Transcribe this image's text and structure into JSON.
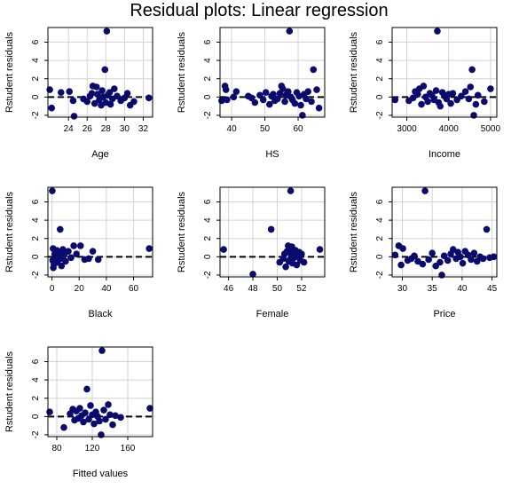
{
  "figure": {
    "title": "Residual plots: Linear regression"
  },
  "style": {
    "point_color": "#0b0b6e",
    "grid_color": "#d3d3d3",
    "reference_line_color": "#000000",
    "reference_line_dash": "dashed",
    "reference_line_y": 0
  },
  "chart_data": [
    {
      "type": "scatter",
      "xlabel": "Age",
      "ylabel": "Rstudent residuals",
      "xlim": [
        21.8,
        33
      ],
      "ylim": [
        -2.2,
        7.6
      ],
      "xticks": [
        24,
        26,
        28,
        30,
        32
      ],
      "yticks": [
        -2,
        0,
        2,
        4,
        6
      ],
      "grid": true,
      "points": [
        [
          22.0,
          0.8
        ],
        [
          22.2,
          -1.2
        ],
        [
          23.2,
          0.5
        ],
        [
          24.1,
          0.6
        ],
        [
          24.6,
          -2.1
        ],
        [
          24.5,
          -0.4
        ],
        [
          25.6,
          -0.2
        ],
        [
          26.0,
          -0.5
        ],
        [
          26.3,
          0.1
        ],
        [
          26.5,
          0.4
        ],
        [
          26.6,
          1.2
        ],
        [
          26.8,
          -0.7
        ],
        [
          27.0,
          1.1
        ],
        [
          27.1,
          0.3
        ],
        [
          27.3,
          -0.3
        ],
        [
          27.5,
          -0.9
        ],
        [
          27.6,
          0.7
        ],
        [
          27.7,
          0.0
        ],
        [
          27.9,
          3.0
        ],
        [
          28.1,
          7.2
        ],
        [
          28.0,
          -0.6
        ],
        [
          28.2,
          0.2
        ],
        [
          28.4,
          0.5
        ],
        [
          28.5,
          -0.8
        ],
        [
          28.7,
          -0.2
        ],
        [
          28.9,
          0.9
        ],
        [
          29.2,
          0.1
        ],
        [
          29.6,
          -0.4
        ],
        [
          30.0,
          -0.1
        ],
        [
          30.3,
          0.4
        ],
        [
          30.6,
          -0.9
        ],
        [
          31.0,
          -0.5
        ],
        [
          32.6,
          -0.1
        ]
      ]
    },
    {
      "type": "scatter",
      "xlabel": "HS",
      "ylabel": "Rstudent residuals",
      "xlim": [
        36.5,
        68
      ],
      "ylim": [
        -2.2,
        7.6
      ],
      "xticks": [
        40,
        50,
        60
      ],
      "yticks": [
        -2,
        0,
        2,
        4,
        6
      ],
      "grid": true,
      "points": [
        [
          37.0,
          -0.4
        ],
        [
          38.0,
          1.2
        ],
        [
          38.3,
          0.8
        ],
        [
          38.6,
          -0.3
        ],
        [
          40.6,
          0.0
        ],
        [
          41.4,
          0.6
        ],
        [
          45.0,
          0.1
        ],
        [
          46.0,
          -0.1
        ],
        [
          47.0,
          -0.6
        ],
        [
          48.5,
          0.2
        ],
        [
          49.5,
          -0.3
        ],
        [
          50.3,
          0.5
        ],
        [
          51.4,
          -0.8
        ],
        [
          52.0,
          0.1
        ],
        [
          52.5,
          0.3
        ],
        [
          53.0,
          -0.4
        ],
        [
          53.8,
          -0.2
        ],
        [
          54.5,
          0.4
        ],
        [
          55.0,
          1.2
        ],
        [
          55.4,
          0.9
        ],
        [
          56.0,
          -0.5
        ],
        [
          56.3,
          0.2
        ],
        [
          57.0,
          0.6
        ],
        [
          57.4,
          7.2
        ],
        [
          57.8,
          0.0
        ],
        [
          58.3,
          -0.3
        ],
        [
          59.0,
          -0.7
        ],
        [
          59.6,
          0.5
        ],
        [
          60.3,
          0.1
        ],
        [
          60.8,
          -0.9
        ],
        [
          61.3,
          -2.0
        ],
        [
          61.8,
          0.3
        ],
        [
          62.4,
          -0.2
        ],
        [
          63.0,
          0.6
        ],
        [
          64.0,
          -0.5
        ],
        [
          64.6,
          3.0
        ],
        [
          65.6,
          0.8
        ],
        [
          66.3,
          -1.2
        ]
      ]
    },
    {
      "type": "scatter",
      "xlabel": "Income",
      "ylabel": "Rstudent residuals",
      "xlim": [
        2650,
        5150
      ],
      "ylim": [
        -2.2,
        7.6
      ],
      "xticks": [
        3000,
        4000,
        5000
      ],
      "yticks": [
        -2,
        0,
        2,
        4,
        6
      ],
      "grid": true,
      "points": [
        [
          2720,
          -0.3
        ],
        [
          3050,
          -0.4
        ],
        [
          3150,
          -0.1
        ],
        [
          3200,
          0.6
        ],
        [
          3260,
          0.3
        ],
        [
          3300,
          0.9
        ],
        [
          3350,
          -0.8
        ],
        [
          3400,
          1.2
        ],
        [
          3450,
          0.0
        ],
        [
          3500,
          -0.5
        ],
        [
          3550,
          0.4
        ],
        [
          3600,
          0.2
        ],
        [
          3650,
          -0.3
        ],
        [
          3700,
          0.7
        ],
        [
          3730,
          7.2
        ],
        [
          3760,
          -0.6
        ],
        [
          3800,
          -1.0
        ],
        [
          3850,
          0.5
        ],
        [
          3900,
          0.1
        ],
        [
          3950,
          -0.2
        ],
        [
          4000,
          0.3
        ],
        [
          4050,
          -0.7
        ],
        [
          4100,
          0.4
        ],
        [
          4200,
          -0.3
        ],
        [
          4300,
          0.1
        ],
        [
          4400,
          0.6
        ],
        [
          4480,
          -0.2
        ],
        [
          4520,
          1.1
        ],
        [
          4560,
          3.0
        ],
        [
          4600,
          -2.0
        ],
        [
          4650,
          -0.8
        ],
        [
          4700,
          0.2
        ],
        [
          4850,
          -0.5
        ],
        [
          5000,
          0.9
        ]
      ]
    },
    {
      "type": "scatter",
      "xlabel": "Black",
      "ylabel": "Rstudent residuals",
      "xlim": [
        -3,
        74
      ],
      "ylim": [
        -2.2,
        7.6
      ],
      "xticks": [
        0,
        20,
        40,
        60
      ],
      "yticks": [
        -2,
        0,
        2,
        4,
        6
      ],
      "grid": true,
      "points": [
        [
          0.2,
          7.2
        ],
        [
          0.5,
          -0.4
        ],
        [
          0.8,
          0.9
        ],
        [
          1.0,
          -1.2
        ],
        [
          1.5,
          -0.8
        ],
        [
          2.0,
          0.3
        ],
        [
          2.5,
          -0.3
        ],
        [
          3.0,
          0.1
        ],
        [
          3.5,
          0.7
        ],
        [
          4.0,
          -0.6
        ],
        [
          5.0,
          0.4
        ],
        [
          6.0,
          3.0
        ],
        [
          6.5,
          -0.2
        ],
        [
          7.0,
          -1.0
        ],
        [
          8.0,
          0.8
        ],
        [
          9.0,
          0.2
        ],
        [
          10.0,
          -0.5
        ],
        [
          12.0,
          0.6
        ],
        [
          14.0,
          -0.1
        ],
        [
          16.0,
          1.2
        ],
        [
          18.0,
          0.3
        ],
        [
          21.0,
          1.2
        ],
        [
          24.0,
          -0.3
        ],
        [
          27.0,
          -0.2
        ],
        [
          30.0,
          0.6
        ],
        [
          34.0,
          -0.3
        ],
        [
          71.5,
          0.9
        ]
      ]
    },
    {
      "type": "scatter",
      "xlabel": "Female",
      "ylabel": "Rstudent residuals",
      "xlim": [
        45.3,
        53.9
      ],
      "ylim": [
        -2.2,
        7.6
      ],
      "xticks": [
        46,
        48,
        50,
        52
      ],
      "yticks": [
        -2,
        0,
        2,
        4,
        6
      ],
      "grid": true,
      "points": [
        [
          45.6,
          0.8
        ],
        [
          48.0,
          -1.9
        ],
        [
          49.5,
          3.0
        ],
        [
          50.2,
          -0.6
        ],
        [
          50.5,
          -0.2
        ],
        [
          50.6,
          0.3
        ],
        [
          50.7,
          -1.1
        ],
        [
          50.8,
          0.6
        ],
        [
          50.9,
          1.2
        ],
        [
          50.95,
          -0.5
        ],
        [
          51.0,
          0.9
        ],
        [
          51.05,
          -0.3
        ],
        [
          51.1,
          7.2
        ],
        [
          51.15,
          0.2
        ],
        [
          51.2,
          1.1
        ],
        [
          51.25,
          -0.7
        ],
        [
          51.3,
          0.4
        ],
        [
          51.4,
          -0.1
        ],
        [
          51.5,
          0.7
        ],
        [
          51.6,
          -0.9
        ],
        [
          51.7,
          0.1
        ],
        [
          51.8,
          0.5
        ],
        [
          51.9,
          -0.4
        ],
        [
          52.0,
          0.3
        ],
        [
          52.2,
          -0.6
        ],
        [
          53.5,
          0.8
        ]
      ]
    },
    {
      "type": "scatter",
      "xlabel": "Price",
      "ylabel": "Rstudent residuals",
      "xlim": [
        28.3,
        45.8
      ],
      "ylim": [
        -2.2,
        7.6
      ],
      "xticks": [
        30,
        35,
        40,
        45
      ],
      "yticks": [
        -2,
        0,
        2,
        4,
        6
      ],
      "grid": true,
      "points": [
        [
          28.8,
          0.2
        ],
        [
          29.4,
          1.2
        ],
        [
          29.8,
          -0.9
        ],
        [
          30.1,
          0.9
        ],
        [
          30.9,
          -0.4
        ],
        [
          31.5,
          -0.2
        ],
        [
          32.0,
          0.1
        ],
        [
          32.6,
          -0.5
        ],
        [
          33.4,
          -0.8
        ],
        [
          33.8,
          7.2
        ],
        [
          34.4,
          -0.3
        ],
        [
          35.0,
          0.4
        ],
        [
          35.6,
          -1.0
        ],
        [
          36.3,
          -0.6
        ],
        [
          36.6,
          -2.0
        ],
        [
          37.0,
          0.1
        ],
        [
          37.6,
          -0.4
        ],
        [
          38.1,
          0.3
        ],
        [
          38.5,
          0.8
        ],
        [
          39.0,
          -0.2
        ],
        [
          39.3,
          0.5
        ],
        [
          39.7,
          0.0
        ],
        [
          40.1,
          -0.7
        ],
        [
          40.5,
          0.6
        ],
        [
          41.0,
          0.2
        ],
        [
          41.5,
          -0.3
        ],
        [
          42.0,
          0.4
        ],
        [
          42.5,
          -0.5
        ],
        [
          43.0,
          0.0
        ],
        [
          43.5,
          -0.2
        ],
        [
          44.1,
          3.0
        ],
        [
          44.6,
          -0.1
        ],
        [
          45.3,
          0.0
        ]
      ]
    },
    {
      "type": "scatter",
      "xlabel": "Fitted values",
      "ylabel": "Rstudent residuals",
      "xlim": [
        70,
        188
      ],
      "ylim": [
        -2.2,
        7.6
      ],
      "xticks": [
        80,
        120,
        160
      ],
      "yticks": [
        -2,
        0,
        2,
        4,
        6
      ],
      "grid": true,
      "points": [
        [
          72,
          0.5
        ],
        [
          88,
          -1.2
        ],
        [
          95,
          0.3
        ],
        [
          98,
          0.8
        ],
        [
          100,
          -0.4
        ],
        [
          102,
          0.6
        ],
        [
          104,
          -0.2
        ],
        [
          106,
          0.9
        ],
        [
          108,
          0.1
        ],
        [
          110,
          -0.6
        ],
        [
          112,
          0.4
        ],
        [
          114,
          3.0
        ],
        [
          116,
          -0.3
        ],
        [
          118,
          1.2
        ],
        [
          120,
          0.2
        ],
        [
          122,
          -0.8
        ],
        [
          124,
          0.5
        ],
        [
          126,
          0.0
        ],
        [
          128,
          -0.5
        ],
        [
          130,
          -2.0
        ],
        [
          131,
          7.2
        ],
        [
          133,
          0.7
        ],
        [
          135,
          -0.3
        ],
        [
          138,
          1.3
        ],
        [
          140,
          0.2
        ],
        [
          143,
          -0.9
        ],
        [
          146,
          0.1
        ],
        [
          152,
          -0.1
        ],
        [
          185,
          0.9
        ]
      ]
    }
  ]
}
